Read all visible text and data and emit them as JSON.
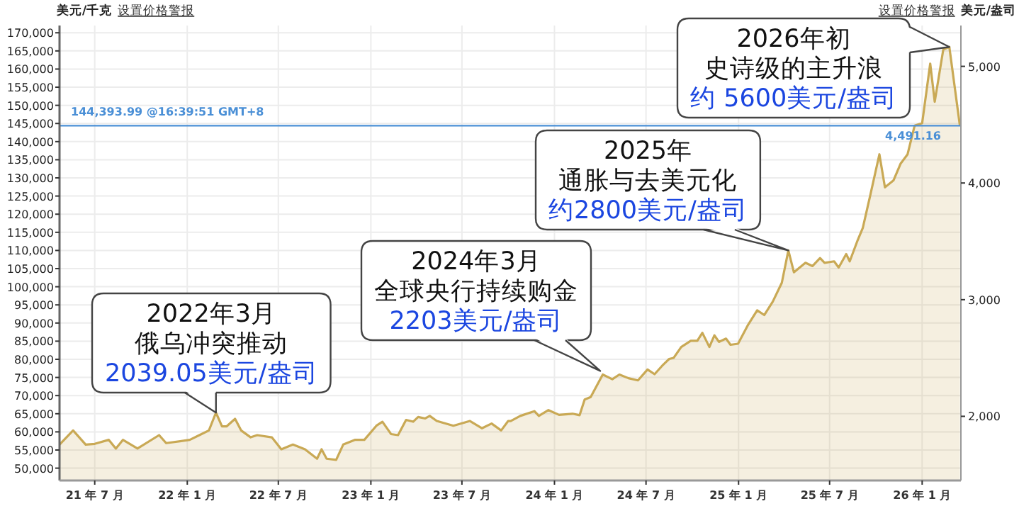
{
  "chart_data": {
    "type": "area",
    "ylabel": "美元/千克",
    "y2label": "美元/盎司",
    "xlim": [
      "2021-04-22",
      "2026-03-19"
    ],
    "xticks": [
      {
        "value": "2021-07-01",
        "label": "21 年 7 月"
      },
      {
        "value": "2022-01-01",
        "label": "22 年 1 月"
      },
      {
        "value": "2022-07-01",
        "label": "22 年 7 月"
      },
      {
        "value": "2023-01-01",
        "label": "23 年 1 月"
      },
      {
        "value": "2023-07-01",
        "label": "23 年 7 月"
      },
      {
        "value": "2024-01-01",
        "label": "24 年 1 月"
      },
      {
        "value": "2024-07-01",
        "label": "24 年 7 月"
      },
      {
        "value": "2025-01-01",
        "label": "25 年 1 月"
      },
      {
        "value": "2025-07-01",
        "label": "25 年 7 月"
      },
      {
        "value": "2026-01-01",
        "label": "26 年 1 月"
      }
    ],
    "ylim": [
      46600,
      172000
    ],
    "yticks": [
      {
        "value": 50000,
        "label": "50,000"
      },
      {
        "value": 55000,
        "label": "55,000"
      },
      {
        "value": 60000,
        "label": "60,000"
      },
      {
        "value": 65000,
        "label": "65,000"
      },
      {
        "value": 70000,
        "label": "70,000"
      },
      {
        "value": 75000,
        "label": "75,000"
      },
      {
        "value": 80000,
        "label": "80,000"
      },
      {
        "value": 85000,
        "label": "85,000"
      },
      {
        "value": 90000,
        "label": "90,000"
      },
      {
        "value": 95000,
        "label": "95,000"
      },
      {
        "value": 100000,
        "label": "100,000"
      },
      {
        "value": 105000,
        "label": "105,000"
      },
      {
        "value": 110000,
        "label": "110,000"
      },
      {
        "value": 115000,
        "label": "115,000"
      },
      {
        "value": 120000,
        "label": "120,000"
      },
      {
        "value": 125000,
        "label": "125,000"
      },
      {
        "value": 130000,
        "label": "130,000"
      },
      {
        "value": 135000,
        "label": "135,000"
      },
      {
        "value": 140000,
        "label": "140,000"
      },
      {
        "value": 145000,
        "label": "145,000"
      },
      {
        "value": 150000,
        "label": "150,000"
      },
      {
        "value": 155000,
        "label": "155,000"
      },
      {
        "value": 160000,
        "label": "160,000"
      },
      {
        "value": 165000,
        "label": "165,000"
      },
      {
        "value": 170000,
        "label": "170,000"
      }
    ],
    "y2lim": [
      1450,
      5350
    ],
    "y2ticks": [
      {
        "value": 2000,
        "label": "2,000"
      },
      {
        "value": 3000,
        "label": "3,000"
      },
      {
        "value": 4000,
        "label": "4,000"
      },
      {
        "value": 5000,
        "label": "5,000"
      }
    ],
    "grid": true,
    "series": [
      {
        "color": "#c9a955",
        "x": [
          "2021-04-22",
          "2021-05-19",
          "2021-06-13",
          "2021-07-01",
          "2021-07-29",
          "2021-08-12",
          "2021-08-26",
          "2021-09-24",
          "2021-11-06",
          "2021-11-20",
          "2022-01-06",
          "2022-01-25",
          "2022-02-13",
          "2022-02-27",
          "2022-03-11",
          "2022-03-20",
          "2022-04-06",
          "2022-04-18",
          "2022-05-07",
          "2022-05-20",
          "2022-06-18",
          "2022-07-07",
          "2022-07-30",
          "2022-08-23",
          "2022-09-16",
          "2022-09-25",
          "2022-10-05",
          "2022-10-24",
          "2022-11-07",
          "2022-11-30",
          "2022-12-19",
          "2023-01-12",
          "2023-01-24",
          "2023-02-10",
          "2023-02-24",
          "2023-03-12",
          "2023-03-26",
          "2023-04-05",
          "2023-04-19",
          "2023-04-28",
          "2023-05-12",
          "2023-06-14",
          "2023-07-17",
          "2023-08-10",
          "2023-08-29",
          "2023-09-17",
          "2023-10-01",
          "2023-10-06",
          "2023-10-25",
          "2023-11-22",
          "2023-12-01",
          "2023-12-20",
          "2024-01-10",
          "2024-02-06",
          "2024-02-20",
          "2024-03-01",
          "2024-03-13",
          "2024-04-06",
          "2024-04-25",
          "2024-05-09",
          "2024-05-27",
          "2024-06-15",
          "2024-07-04",
          "2024-07-18",
          "2024-08-02",
          "2024-08-16",
          "2024-08-25",
          "2024-09-09",
          "2024-09-28",
          "2024-10-11",
          "2024-10-21",
          "2024-11-04",
          "2024-11-14",
          "2024-11-23",
          "2024-12-07",
          "2024-12-16",
          "2024-12-31",
          "2025-01-19",
          "2025-02-07",
          "2025-02-21",
          "2025-03-10",
          "2025-03-28",
          "2025-04-10",
          "2025-04-21",
          "2025-05-14",
          "2025-05-28",
          "2025-06-12",
          "2025-06-21",
          "2025-07-10",
          "2025-07-19",
          "2025-08-03",
          "2025-08-10",
          "2025-08-26",
          "2025-09-05",
          "2025-09-19",
          "2025-10-08",
          "2025-10-19",
          "2025-11-05",
          "2025-11-19",
          "2025-12-03",
          "2025-12-17",
          "2026-01-01",
          "2026-01-17",
          "2026-01-26",
          "2026-02-12",
          "2026-02-24",
          "2026-03-17"
        ],
        "values": [
          56500,
          60400,
          56500,
          56700,
          57800,
          55400,
          57800,
          55400,
          59100,
          56900,
          57800,
          59100,
          60400,
          65300,
          61500,
          61500,
          63600,
          60400,
          58500,
          59100,
          58500,
          55200,
          56500,
          55200,
          52600,
          55200,
          52600,
          52300,
          56500,
          57800,
          57800,
          61700,
          62800,
          59400,
          59100,
          63300,
          62800,
          64100,
          63700,
          64400,
          63000,
          61700,
          63000,
          61000,
          62300,
          60400,
          63000,
          63000,
          64400,
          65700,
          64400,
          66000,
          64700,
          65000,
          64600,
          68900,
          69600,
          75800,
          74500,
          75800,
          74800,
          74200,
          77200,
          75900,
          78200,
          80100,
          80400,
          83400,
          85100,
          85100,
          87300,
          83400,
          86600,
          84800,
          85700,
          84000,
          84300,
          89300,
          93500,
          92200,
          95900,
          101100,
          110000,
          104000,
          106600,
          105700,
          107900,
          106600,
          107000,
          105300,
          109000,
          107000,
          112900,
          116200,
          124700,
          136500,
          127400,
          129300,
          133900,
          136500,
          144400,
          145100,
          161500,
          151000,
          165400,
          166100,
          144400
        ]
      }
    ],
    "ref_lines": [
      {
        "axis": "y",
        "value": 144393.99,
        "label": "144,393.99 @16:39:51 GMT+8",
        "color": "#4a8fd6"
      }
    ],
    "annotations": [
      "设置价格警报",
      "设置价格警报",
      "4,491.16",
      "2022年3月",
      "俄乌冲突推动",
      {
        "text": "2039.05美元/盎司",
        "x": "2022-02-27",
        "y": 65300
      },
      "2024年3月",
      "全球央行持续购金",
      {
        "text": "2203美元/盎司",
        "x": "2024-04-01",
        "y": 76800
      },
      "2025年",
      "通胀与去美元化",
      {
        "text": "约2800美元/盎司",
        "x": "2025-04-10",
        "y": 110000
      },
      "2026年初",
      "史诗级的主升浪",
      {
        "text": "约 5600美元/盎司",
        "x": "2026-02-24",
        "y": 166100
      }
    ]
  }
}
